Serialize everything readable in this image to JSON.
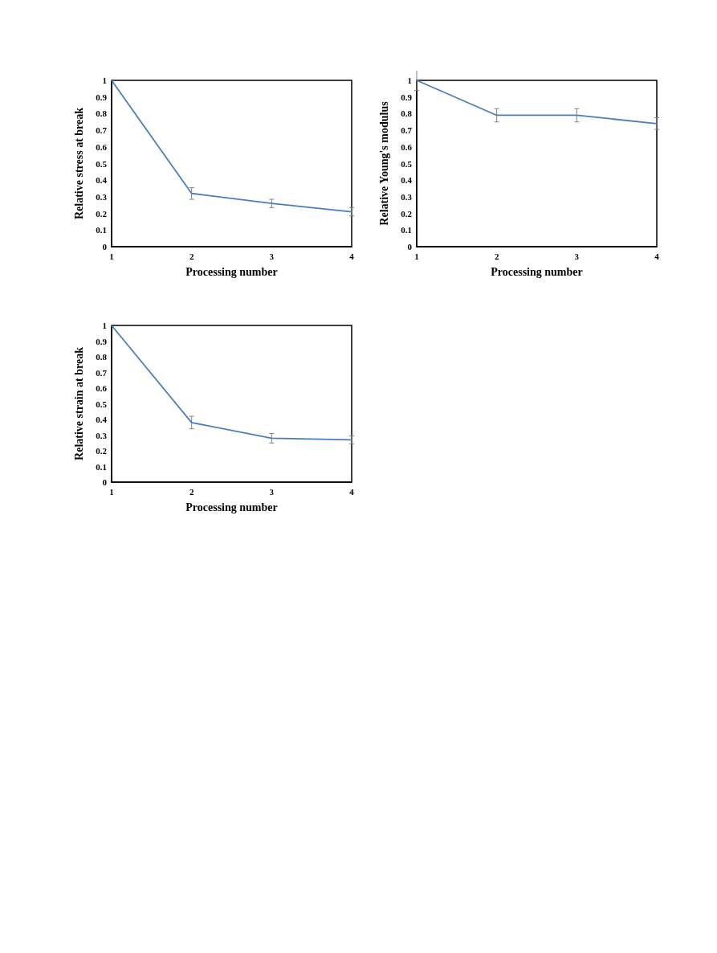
{
  "chart_data": [
    {
      "type": "line",
      "xlabel": "Processing number",
      "ylabel": "Relative stress at break",
      "x": [
        1,
        2,
        3,
        4
      ],
      "series": [
        {
          "color": "#4a7ebb",
          "values": [
            1,
            0.32,
            0.26,
            0.21
          ],
          "errors": [
            null,
            0.035,
            0.025,
            0.025
          ]
        }
      ],
      "xlim": [
        1,
        4
      ],
      "xticks": [
        1,
        2,
        3,
        4
      ],
      "ylim": [
        0,
        1
      ],
      "yticks": [
        0,
        0.1,
        0.2,
        0.3,
        0.4,
        0.5,
        0.6,
        0.7,
        0.8,
        0.9,
        1
      ],
      "grid": false,
      "line_style": "solid"
    },
    {
      "type": "line",
      "xlabel": "Processing number",
      "ylabel": "Relative Young's modulus",
      "x": [
        1,
        2,
        3,
        4
      ],
      "series": [
        {
          "color": "#4a7ebb",
          "values": [
            1,
            0.79,
            0.79,
            0.74
          ],
          "errors": [
            0.06,
            0.04,
            0.04,
            0.035
          ]
        }
      ],
      "xlim": [
        1,
        4
      ],
      "xticks": [
        1,
        2,
        3,
        4
      ],
      "ylim": [
        0,
        1
      ],
      "yticks": [
        0,
        0.1,
        0.2,
        0.3,
        0.4,
        0.5,
        0.6,
        0.7,
        0.8,
        0.9,
        1
      ],
      "grid": false,
      "line_style": "solid"
    },
    {
      "type": "line",
      "xlabel": "Processing number",
      "ylabel": "Relative strain at break",
      "x": [
        1,
        2,
        3,
        4
      ],
      "series": [
        {
          "color": "#4a7ebb",
          "values": [
            1,
            0.38,
            0.28,
            0.27
          ],
          "errors": [
            null,
            0.04,
            0.03,
            0.025
          ]
        }
      ],
      "xlim": [
        1,
        4
      ],
      "xticks": [
        1,
        2,
        3,
        4
      ],
      "ylim": [
        0,
        1
      ],
      "yticks": [
        0,
        0.1,
        0.2,
        0.3,
        0.4,
        0.5,
        0.6,
        0.7,
        0.8,
        0.9,
        1
      ],
      "grid": false,
      "line_style": "solid"
    }
  ]
}
